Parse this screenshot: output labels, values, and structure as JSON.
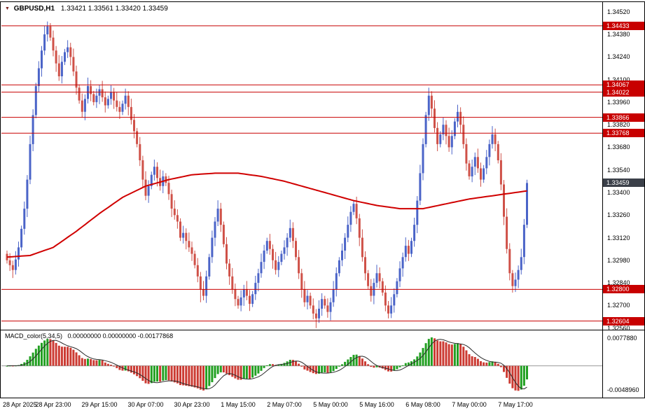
{
  "titlebar": {
    "symbol_icon": "▼",
    "symbol": "GBPUSD,H1",
    "ohlc": "1.33421 1.33561 1.33420 1.33459"
  },
  "macd_panel": {
    "name": "MACD_color(5,34,5)",
    "values": "0.00000000 0.00000000 -0.00177868",
    "axis_top": "0.0077880",
    "axis_bottom": "-0.0048960"
  },
  "colors": {
    "up": "#4b64c8",
    "down": "#cf5148",
    "level_line": "#c80000",
    "ma_line": "#d00000",
    "macd_up": "#22a022",
    "macd_down": "#cc3b33",
    "macd_signal": "#2b2b2b",
    "macd_zero": "#999999",
    "badge_level_bg": "#c80000",
    "badge_current_bg": "#3b4049",
    "badge_text": "#ffffff"
  },
  "chart_data": {
    "type": "candlestick",
    "symbol": "GBPUSD",
    "timeframe": "H1",
    "title": "GBPUSD,H1 1.33421 1.33561 1.33420 1.33459",
    "last_ohlc": {
      "open": 1.33421,
      "high": 1.33561,
      "low": 1.3342,
      "close": 1.33459
    },
    "price_range": {
      "top": 1.3458,
      "bottom": 1.3255
    },
    "grid": false,
    "legend_position": "none",
    "y_ticks": [
      "1.34520",
      "1.34380",
      "1.34240",
      "1.34100",
      "1.33960",
      "1.33820",
      "1.33680",
      "1.33540",
      "1.33400",
      "1.33260",
      "1.33120",
      "1.32980",
      "1.32840",
      "1.32700",
      "1.32560"
    ],
    "levels": [
      1.34433,
      1.34067,
      1.34022,
      1.33866,
      1.33768,
      1.328,
      1.32604
    ],
    "current_price": 1.33459,
    "x_labels": [
      {
        "i": 0,
        "label": "28 Apr 2025"
      },
      {
        "i": 16,
        "label": "28 Apr 23:00"
      },
      {
        "i": 32,
        "label": "29 Apr 15:00"
      },
      {
        "i": 48,
        "label": "30 Apr 07:00"
      },
      {
        "i": 64,
        "label": "30 Apr 23:00"
      },
      {
        "i": 80,
        "label": "1 May 15:00"
      },
      {
        "i": 96,
        "label": "2 May 07:00"
      },
      {
        "i": 112,
        "label": "5 May 00:00"
      },
      {
        "i": 128,
        "label": "5 May 16:00"
      },
      {
        "i": 144,
        "label": "6 May 08:00"
      },
      {
        "i": 160,
        "label": "7 May 00:00"
      },
      {
        "i": 176,
        "label": "7 May 17:00"
      }
    ],
    "closes": [
      1.3298,
      1.3295,
      1.3292,
      1.32985,
      1.3306,
      1.33175,
      1.333,
      1.3348,
      1.337,
      1.3388,
      1.3406,
      1.3417,
      1.3428,
      1.3438,
      1.3443,
      1.3436,
      1.3428,
      1.342,
      1.3412,
      1.3421,
      1.3427,
      1.343,
      1.3424,
      1.3415,
      1.3405,
      1.3397,
      1.339,
      1.3398,
      1.3406,
      1.3401,
      1.3396,
      1.34,
      1.3404,
      1.3399,
      1.3394,
      1.3398,
      1.3402,
      1.3397,
      1.3393,
      1.339,
      1.3395,
      1.34,
      1.3393,
      1.3385,
      1.3378,
      1.337,
      1.336,
      1.3348,
      1.3338,
      1.3344,
      1.3351,
      1.3356,
      1.3349,
      1.3344,
      1.335,
      1.3346,
      1.3339,
      1.333,
      1.3326,
      1.3322,
      1.3312,
      1.3315,
      1.331,
      1.3306,
      1.3302,
      1.3295,
      1.3288,
      1.328,
      1.3276,
      1.3288,
      1.33,
      1.3312,
      1.3322,
      1.333,
      1.332,
      1.3308,
      1.3296,
      1.3288,
      1.328,
      1.3274,
      1.327,
      1.3275,
      1.328,
      1.3276,
      1.3271,
      1.3277,
      1.3284,
      1.329,
      1.3297,
      1.3304,
      1.331,
      1.3305,
      1.3298,
      1.3292,
      1.3297,
      1.3302,
      1.3306,
      1.3312,
      1.3318,
      1.331,
      1.33,
      1.329,
      1.328,
      1.3272,
      1.3276,
      1.327,
      1.3265,
      1.3262,
      1.3268,
      1.3274,
      1.327,
      1.3266,
      1.3272,
      1.328,
      1.329,
      1.3298,
      1.3304,
      1.3312,
      1.332,
      1.3328,
      1.3333,
      1.3324,
      1.3312,
      1.33,
      1.329,
      1.3282,
      1.3276,
      1.3284,
      1.329,
      1.3285,
      1.3278,
      1.327,
      1.3265,
      1.327,
      1.3277,
      1.3285,
      1.3293,
      1.33,
      1.3307,
      1.3302,
      1.331,
      1.332,
      1.3335,
      1.3352,
      1.337,
      1.3388,
      1.34,
      1.3392,
      1.338,
      1.337,
      1.3376,
      1.3382,
      1.3375,
      1.3368,
      1.3375,
      1.3384,
      1.339,
      1.3382,
      1.337,
      1.3358,
      1.335,
      1.3356,
      1.3362,
      1.3355,
      1.3348,
      1.3355,
      1.3362,
      1.337,
      1.3376,
      1.337,
      1.336,
      1.3345,
      1.3325,
      1.3305,
      1.329,
      1.3282,
      1.3286,
      1.3292,
      1.33,
      1.332,
      1.33459
    ],
    "wick_highs": [
      [
        14,
        1.3446
      ],
      [
        146,
        1.3405
      ]
    ],
    "wick_lows": [
      [
        2,
        1.3287
      ],
      [
        67,
        1.3272
      ],
      [
        107,
        1.3256
      ],
      [
        132,
        1.3262
      ],
      [
        175,
        1.3278
      ]
    ],
    "ma_keyframes": [
      [
        0,
        1.33
      ],
      [
        8,
        1.3301
      ],
      [
        16,
        1.3306
      ],
      [
        24,
        1.3316
      ],
      [
        32,
        1.3327
      ],
      [
        40,
        1.3337
      ],
      [
        48,
        1.3344
      ],
      [
        56,
        1.3348
      ],
      [
        64,
        1.3351
      ],
      [
        72,
        1.3352
      ],
      [
        80,
        1.3352
      ],
      [
        88,
        1.335
      ],
      [
        96,
        1.3347
      ],
      [
        104,
        1.3343
      ],
      [
        112,
        1.3339
      ],
      [
        120,
        1.3335
      ],
      [
        128,
        1.3332
      ],
      [
        136,
        1.333
      ],
      [
        144,
        1.333
      ],
      [
        152,
        1.3333
      ],
      [
        160,
        1.3336
      ],
      [
        168,
        1.3338
      ],
      [
        176,
        1.334
      ],
      [
        180,
        1.3341
      ]
    ],
    "indicator": {
      "type": "macd",
      "fast": 5,
      "slow": 34,
      "signal": 5,
      "displayed_values": [
        0.0,
        0.0,
        -0.00177868
      ],
      "axis_range": [
        0.007788,
        -0.004896
      ]
    }
  }
}
